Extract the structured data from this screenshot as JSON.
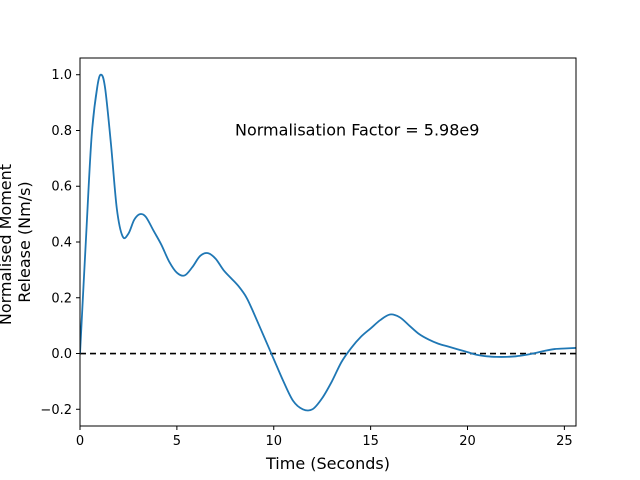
{
  "chart_data": {
    "type": "line",
    "title": "",
    "xlabel": "Time (Seconds)",
    "ylabel": "Normalised Moment Release (Nm/s)",
    "ylabel_lines": [
      "Normalised Moment",
      "Release (Nm/s)"
    ],
    "xlim": [
      0,
      25.6
    ],
    "ylim": [
      -0.26,
      1.06
    ],
    "xticks": [
      0,
      5,
      10,
      15,
      20,
      25
    ],
    "yticks": [
      -0.2,
      0.0,
      0.2,
      0.4,
      0.6,
      0.8,
      1.0
    ],
    "ytick_labels": [
      "−0.2",
      "0.0",
      "0.2",
      "0.4",
      "0.6",
      "0.8",
      "1.0"
    ],
    "grid": false,
    "annotation": {
      "text": "Normalisation Factor = 5.98e9",
      "x": 8.0,
      "y": 0.8
    },
    "reference_line": {
      "y": 0.0,
      "style": "dashed",
      "color": "#000000"
    },
    "series": [
      {
        "color": "#1f77b4",
        "x": [
          0,
          0.3,
          0.6,
          0.9,
          1.1,
          1.3,
          1.6,
          1.9,
          2.2,
          2.5,
          2.8,
          3.1,
          3.4,
          3.8,
          4.2,
          4.6,
          5.0,
          5.4,
          5.8,
          6.2,
          6.6,
          7.0,
          7.4,
          7.8,
          8.2,
          8.6,
          9.0,
          9.5,
          10.0,
          10.5,
          11.0,
          11.5,
          12.0,
          12.5,
          13.0,
          13.5,
          14.0,
          14.5,
          15.0,
          15.5,
          16.0,
          16.5,
          17.0,
          17.5,
          18.0,
          18.5,
          19.0,
          19.5,
          20.0,
          20.5,
          21.0,
          21.5,
          22.0,
          22.5,
          23.0,
          23.5,
          24.0,
          24.5,
          25.0,
          25.6
        ],
        "y": [
          0.0,
          0.4,
          0.78,
          0.96,
          1.0,
          0.95,
          0.75,
          0.52,
          0.42,
          0.43,
          0.48,
          0.5,
          0.49,
          0.44,
          0.39,
          0.33,
          0.29,
          0.28,
          0.31,
          0.35,
          0.36,
          0.34,
          0.3,
          0.27,
          0.24,
          0.2,
          0.14,
          0.06,
          -0.02,
          -0.1,
          -0.17,
          -0.2,
          -0.2,
          -0.16,
          -0.1,
          -0.03,
          0.02,
          0.06,
          0.09,
          0.12,
          0.14,
          0.13,
          0.1,
          0.07,
          0.05,
          0.035,
          0.025,
          0.015,
          0.005,
          -0.005,
          -0.01,
          -0.012,
          -0.012,
          -0.01,
          -0.005,
          0.002,
          0.01,
          0.016,
          0.018,
          0.02
        ]
      }
    ]
  }
}
